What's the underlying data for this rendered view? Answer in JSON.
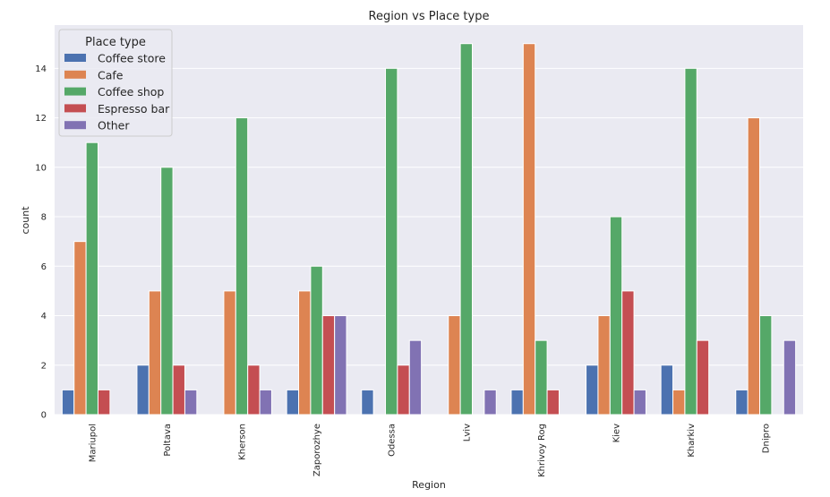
{
  "chart_data": {
    "type": "bar",
    "title": "Region vs Place type",
    "xlabel": "Region",
    "ylabel": "count",
    "ylim": [
      0,
      15.75
    ],
    "yticks": [
      0,
      2,
      4,
      6,
      8,
      10,
      12,
      14
    ],
    "grid": true,
    "legend_title": "Place type",
    "legend_position": "top-left",
    "categories": [
      "Mariupol",
      "Poltava",
      "Kherson",
      "Zaporozhye",
      "Odessa",
      "Lviv",
      "Khrivoy Rog",
      "Kiev",
      "Kharkiv",
      "Dnipro"
    ],
    "series": [
      {
        "name": "Coffee store",
        "color": "#4c72b0",
        "values": [
          1,
          2,
          0,
          1,
          1,
          0,
          1,
          2,
          2,
          1
        ]
      },
      {
        "name": "Cafe",
        "color": "#dd8452",
        "values": [
          7,
          5,
          5,
          5,
          0,
          4,
          15,
          4,
          1,
          12
        ]
      },
      {
        "name": "Coffee shop",
        "color": "#55a868",
        "values": [
          11,
          10,
          12,
          6,
          14,
          15,
          3,
          8,
          14,
          4
        ]
      },
      {
        "name": "Espresso bar",
        "color": "#c44e52",
        "values": [
          1,
          2,
          2,
          4,
          2,
          0,
          1,
          5,
          3,
          0
        ]
      },
      {
        "name": "Other",
        "color": "#8172b3",
        "values": [
          0,
          1,
          1,
          4,
          3,
          1,
          0,
          1,
          0,
          3
        ]
      }
    ]
  }
}
